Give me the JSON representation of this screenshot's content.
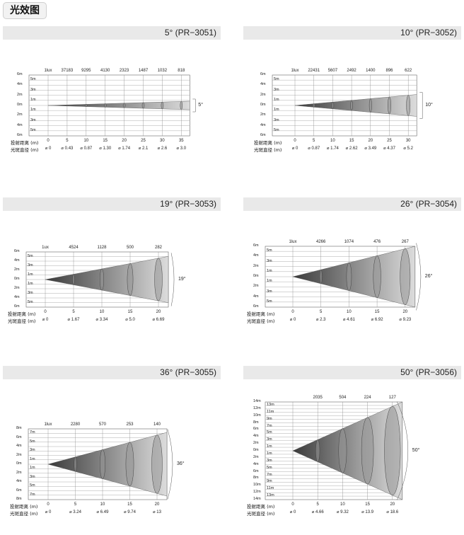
{
  "page_title": "光效图",
  "panels": [
    {
      "title": "5°  (PR−3051)",
      "angle_label": "5°",
      "lux_label": "1lux",
      "lux": [
        "37183",
        "9295",
        "4130",
        "2323",
        "1487",
        "1032",
        "818"
      ],
      "distances": [
        "0",
        "5",
        "10",
        "15",
        "20",
        "25",
        "30",
        "35"
      ],
      "diameters": [
        "⌀ 0",
        "⌀ 0.43",
        "⌀ 0.87",
        "⌀ 1.30",
        "⌀ 1.74",
        "⌀ 2.1",
        "⌀ 2.6",
        "⌀ 3.0"
      ],
      "y_outer": [
        "6m",
        "4m",
        "2m",
        "0m",
        "2m",
        "4m",
        "6m"
      ],
      "y_inner": [
        "5m",
        "3m",
        "1m",
        "1m",
        "3m",
        "5m"
      ],
      "distance_label": "投射距离 (m)",
      "diameter_label": "光斑直径 (m)"
    },
    {
      "title": "10°  (PR−3052)",
      "angle_label": "10°",
      "lux_label": "1lux",
      "lux": [
        "22431",
        "5607",
        "2492",
        "1400",
        "896",
        "622"
      ],
      "distances": [
        "0",
        "5",
        "10",
        "15",
        "20",
        "25",
        "30"
      ],
      "diameters": [
        "⌀ 0",
        "⌀ 0.87",
        "⌀ 1.74",
        "⌀ 2.62",
        "⌀ 3.49",
        "⌀ 4.37",
        "⌀ 5.2"
      ],
      "y_outer": [
        "6m",
        "4m",
        "2m",
        "0m",
        "2m",
        "4m",
        "6m"
      ],
      "y_inner": [
        "5m",
        "3m",
        "1m",
        "1m",
        "3m",
        "5m"
      ],
      "distance_label": "投射距离 (m)",
      "diameter_label": "光斑直径 (m)"
    },
    {
      "title": "19°  (PR−3053)",
      "angle_label": "19°",
      "lux_label": "1ux",
      "lux": [
        "4524",
        "1128",
        "500",
        "282"
      ],
      "distances": [
        "0",
        "5",
        "10",
        "15",
        "20"
      ],
      "diameters": [
        "⌀ 0",
        "⌀ 1.67",
        "⌀ 3.34",
        "⌀ 5.0",
        "⌀ 6.69"
      ],
      "y_outer": [
        "6m",
        "4m",
        "2m",
        "0m",
        "2m",
        "4m",
        "6m"
      ],
      "y_inner": [
        "5m",
        "3m",
        "1m",
        "1m",
        "3m",
        "5m"
      ],
      "distance_label": "投射距离 (m)",
      "diameter_label": "光斑直径 (m)"
    },
    {
      "title": "26°  (PR−3054)",
      "angle_label": "26°",
      "lux_label": "1lux",
      "lux": [
        "4266",
        "1074",
        "476",
        "267"
      ],
      "distances": [
        "0",
        "5",
        "10",
        "15",
        "20"
      ],
      "diameters": [
        "⌀ 0",
        "⌀ 2.3",
        "⌀ 4.61",
        "⌀ 6.92",
        "⌀ 9.23"
      ],
      "y_outer": [
        "6m",
        "4m",
        "2m",
        "0m",
        "2m",
        "4m",
        "6m"
      ],
      "y_inner": [
        "5m",
        "3m",
        "1m",
        "1m",
        "3m",
        "5m"
      ],
      "distance_label": "投射距离 (m)",
      "diameter_label": "光斑直径 (m)"
    },
    {
      "title": "36°  (PR−3055)",
      "angle_label": "36°",
      "lux_label": "1lux",
      "lux": [
        "2280",
        "570",
        "253",
        "140"
      ],
      "distances": [
        "0",
        "5",
        "10",
        "15",
        "20"
      ],
      "diameters": [
        "⌀ 0",
        "⌀ 3.24",
        "⌀ 6.49",
        "⌀ 9.74",
        "⌀ 13"
      ],
      "y_outer": [
        "8m",
        "6m",
        "4m",
        "2m",
        "0m",
        "2m",
        "4m",
        "6m",
        "8m"
      ],
      "y_inner": [
        "7m",
        "5m",
        "3m",
        "1m",
        "1m",
        "3m",
        "5m",
        "7m"
      ],
      "distance_label": "投射距离 (m)",
      "diameter_label": "光斑直径 (m)"
    },
    {
      "title": "50°  (PR−3056)",
      "angle_label": "50°",
      "lux_label": "",
      "lux": [
        "2035",
        "504",
        "224",
        "127"
      ],
      "distances": [
        "0",
        "5",
        "10",
        "15",
        "20"
      ],
      "diameters": [
        "⌀ 0",
        "⌀ 4.66",
        "⌀ 9.32",
        "⌀ 13.9",
        "⌀ 18.6"
      ],
      "y_outer": [
        "14m",
        "12m",
        "10m",
        "8m",
        "6m",
        "4m",
        "2m",
        "0m",
        "2m",
        "4m",
        "6m",
        "8m",
        "10m",
        "12m",
        "14m"
      ],
      "y_inner": [
        "13m",
        "11m",
        "9m",
        "7m",
        "5m",
        "3m",
        "1m",
        "1m",
        "3m",
        "5m",
        "7m",
        "9m",
        "11m",
        "13m"
      ],
      "distance_label": "投射距离 (m)",
      "diameter_label": "光斑直径 (m)"
    }
  ]
}
